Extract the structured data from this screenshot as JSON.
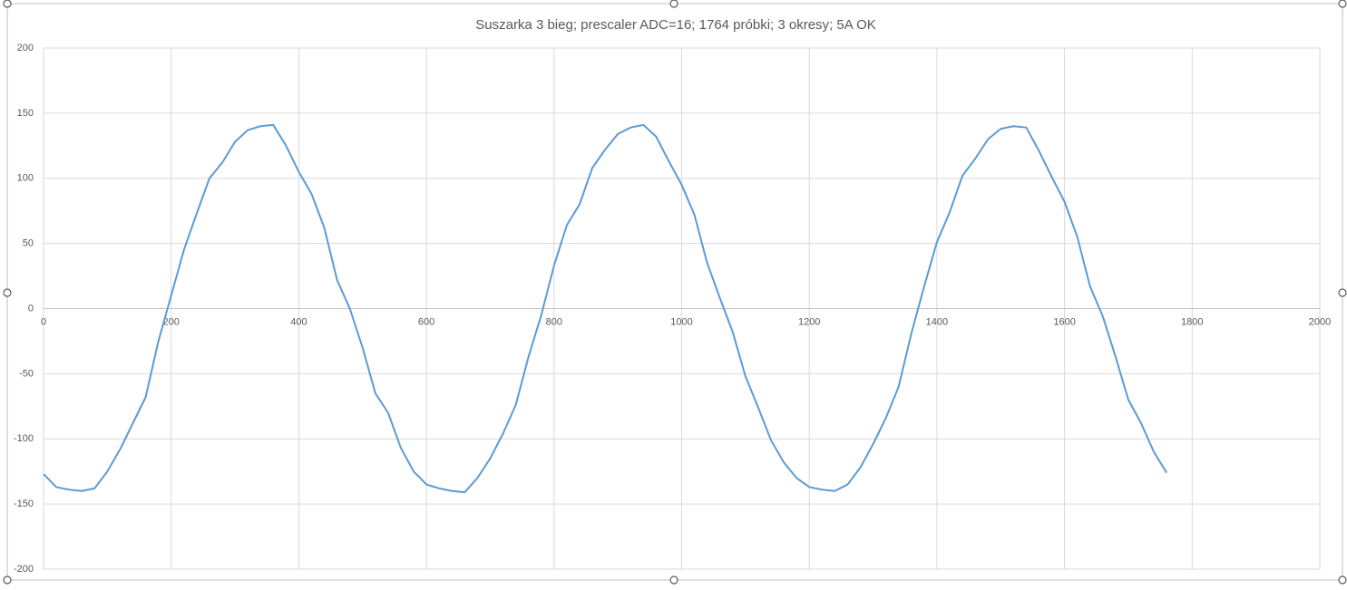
{
  "chart_data": {
    "type": "line",
    "title": "Suszarka 3 bieg; prescaler ADC=16; 1764 próbki; 3 okresy; 5A OK",
    "x": [
      0,
      20,
      40,
      60,
      80,
      100,
      120,
      140,
      160,
      180,
      200,
      220,
      240,
      260,
      280,
      300,
      320,
      340,
      360,
      380,
      400,
      420,
      440,
      460,
      480,
      500,
      520,
      540,
      560,
      580,
      600,
      620,
      640,
      660,
      680,
      700,
      720,
      740,
      760,
      780,
      800,
      820,
      840,
      860,
      880,
      900,
      920,
      940,
      960,
      980,
      1000,
      1020,
      1040,
      1060,
      1080,
      1100,
      1120,
      1140,
      1160,
      1180,
      1200,
      1220,
      1240,
      1260,
      1280,
      1300,
      1320,
      1340,
      1360,
      1380,
      1400,
      1420,
      1440,
      1460,
      1480,
      1500,
      1520,
      1540,
      1560,
      1580,
      1600,
      1620,
      1640,
      1660,
      1680,
      1700,
      1720,
      1740,
      1760
    ],
    "series": [
      {
        "color": "#5b9bd5",
        "values": [
          -127,
          -137,
          -139,
          -140,
          -138,
          -125,
          -108,
          -88,
          -68,
          -25,
          10,
          45,
          73,
          100,
          112,
          128,
          137,
          140,
          141,
          125,
          105,
          88,
          62,
          22,
          0,
          -30,
          -65,
          -80,
          -107,
          -125,
          -135,
          -138,
          -140,
          -141,
          -130,
          -115,
          -96,
          -74,
          -37,
          -5,
          33,
          64,
          80,
          108,
          122,
          134,
          139,
          141,
          132,
          113,
          95,
          72,
          35,
          8,
          -18,
          -52,
          -76,
          -101,
          -118,
          -130,
          -137,
          -139,
          -140,
          -135,
          -122,
          -104,
          -84,
          -60,
          -19,
          17,
          51,
          74,
          102,
          115,
          130,
          138,
          140,
          139,
          121,
          101,
          82,
          55,
          17,
          -6,
          -37,
          -70,
          -88,
          -110,
          -126
        ]
      }
    ],
    "xlim": [
      0,
      2000
    ],
    "xticks": [
      0,
      200,
      400,
      600,
      800,
      1000,
      1200,
      1400,
      1600,
      1800,
      2000
    ],
    "ylim": [
      -200,
      200
    ],
    "yticks": [
      -200,
      -150,
      -100,
      -50,
      0,
      50,
      100,
      150,
      200
    ],
    "grid": true
  }
}
